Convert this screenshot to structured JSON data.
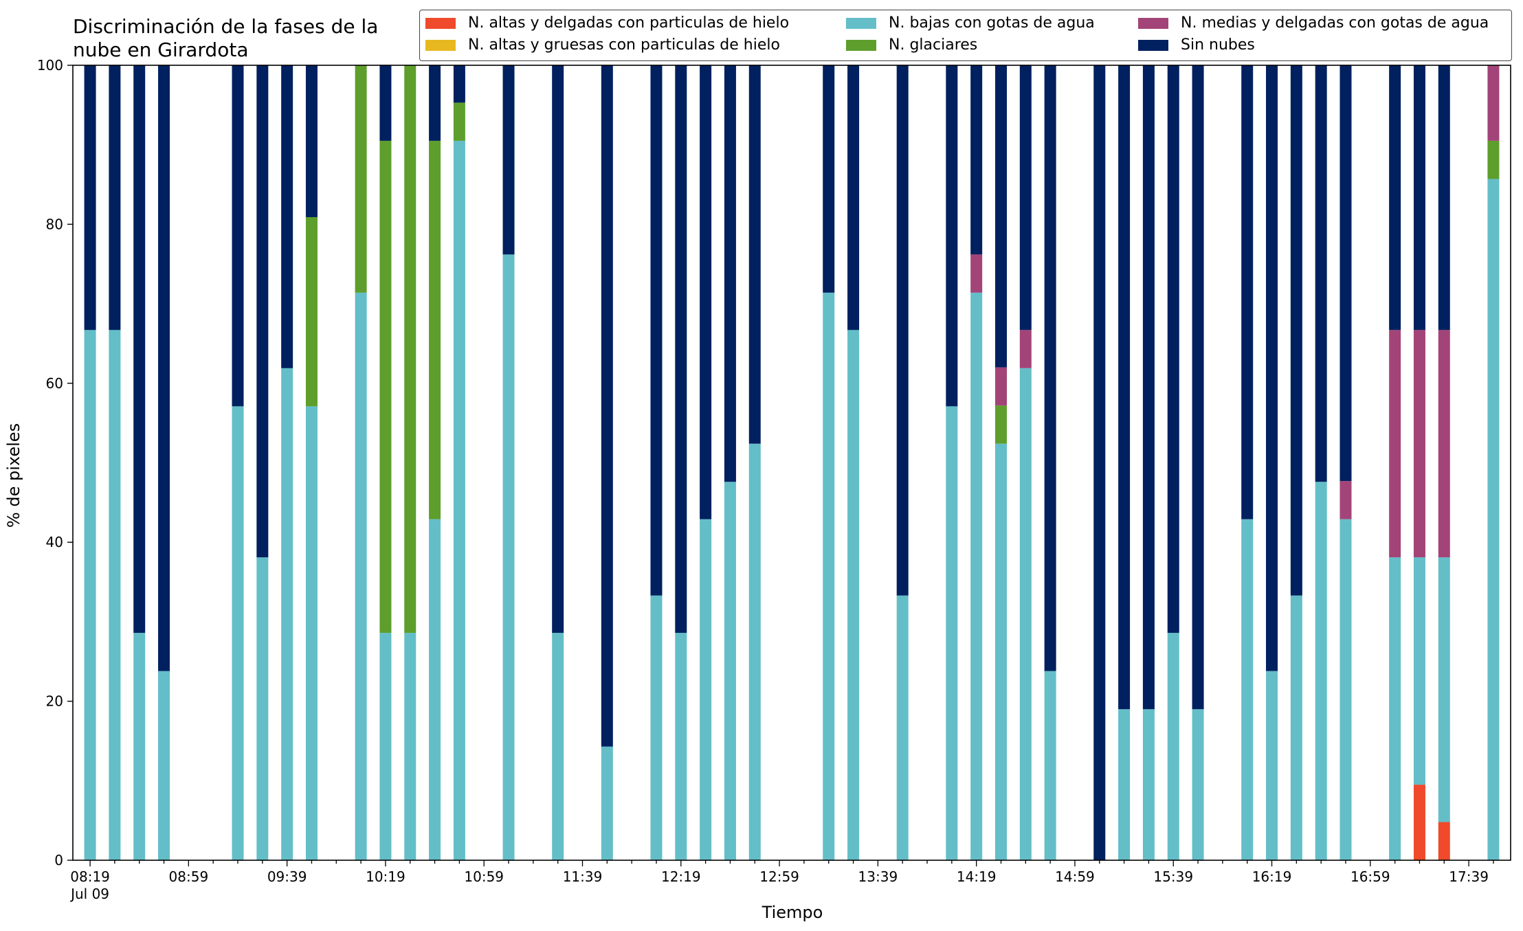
{
  "chart_data": {
    "type": "bar",
    "title": "Discriminación de la fases de la nube en Girardota",
    "title_lines": [
      "Discriminación de la fases de la",
      "nube en Girardota"
    ],
    "xlabel": "Tiempo",
    "ylabel": "% de pixeles",
    "ylim": [
      0,
      100
    ],
    "yticks": [
      0,
      20,
      40,
      60,
      80,
      100
    ],
    "x_start": "08:19",
    "x_end": "17:49",
    "x_step_minutes": 10,
    "xtick_labels": [
      "08:19",
      "08:59",
      "09:39",
      "10:19",
      "10:59",
      "11:39",
      "12:19",
      "12:59",
      "13:39",
      "14:19",
      "14:59",
      "15:39",
      "16:19",
      "16:59",
      "17:39"
    ],
    "x_date_label": "Jul 09",
    "legend_position": "top-right",
    "stacked": true,
    "series": [
      {
        "name": "N. altas y delgadas con particulas de hielo",
        "color": "#ee4a2b"
      },
      {
        "name": "N. altas y gruesas con particulas de hielo",
        "color": "#e8b820"
      },
      {
        "name": "N. bajas con gotas de agua",
        "color": "#63bec8"
      },
      {
        "name": "N. glaciares",
        "color": "#5e9e2c"
      },
      {
        "name": "N. medias y delgadas con gotas de agua",
        "color": "#a34478"
      },
      {
        "name": "Sin nubes",
        "color": "#00205f"
      }
    ],
    "bars": [
      {
        "time": "08:19",
        "values": [
          0,
          0,
          66.7,
          0,
          0,
          33.3
        ]
      },
      {
        "time": "08:29",
        "values": [
          0,
          0,
          66.7,
          0,
          0,
          33.3
        ]
      },
      {
        "time": "08:39",
        "values": [
          0,
          0,
          28.6,
          0,
          0,
          71.4
        ]
      },
      {
        "time": "08:49",
        "values": [
          0,
          0,
          23.8,
          0,
          0,
          76.2
        ]
      },
      {
        "time": "09:19",
        "values": [
          0,
          0,
          57.1,
          0,
          0,
          42.9
        ]
      },
      {
        "time": "09:29",
        "values": [
          0,
          0,
          38.1,
          0,
          0,
          61.9
        ]
      },
      {
        "time": "09:39",
        "values": [
          0,
          0,
          61.9,
          0,
          0,
          38.1
        ]
      },
      {
        "time": "09:49",
        "values": [
          0,
          0,
          57.1,
          23.8,
          0,
          19.1
        ]
      },
      {
        "time": "10:09",
        "values": [
          0,
          0,
          71.4,
          28.6,
          0,
          0
        ]
      },
      {
        "time": "10:19",
        "values": [
          0,
          0,
          28.6,
          61.9,
          0,
          9.5
        ]
      },
      {
        "time": "10:29",
        "values": [
          0,
          0,
          28.6,
          71.4,
          0,
          0
        ]
      },
      {
        "time": "10:39",
        "values": [
          0,
          0,
          42.9,
          47.6,
          0,
          9.5
        ]
      },
      {
        "time": "10:49",
        "values": [
          0,
          0,
          90.5,
          4.8,
          0,
          4.7
        ]
      },
      {
        "time": "11:09",
        "values": [
          0,
          0,
          76.2,
          0,
          0,
          23.8
        ]
      },
      {
        "time": "11:29",
        "values": [
          0,
          0,
          28.6,
          0,
          0,
          71.4
        ]
      },
      {
        "time": "11:49",
        "values": [
          0,
          0,
          14.3,
          0,
          0,
          85.7
        ]
      },
      {
        "time": "12:09",
        "values": [
          0,
          0,
          33.3,
          0,
          0,
          66.7
        ]
      },
      {
        "time": "12:19",
        "values": [
          0,
          0,
          28.6,
          0,
          0,
          71.4
        ]
      },
      {
        "time": "12:29",
        "values": [
          0,
          0,
          42.9,
          0,
          0,
          57.1
        ]
      },
      {
        "time": "12:39",
        "values": [
          0,
          0,
          47.6,
          0,
          0,
          52.4
        ]
      },
      {
        "time": "12:49",
        "values": [
          0,
          0,
          52.4,
          0,
          0,
          47.6
        ]
      },
      {
        "time": "13:19",
        "values": [
          0,
          0,
          71.4,
          0,
          0,
          28.6
        ]
      },
      {
        "time": "13:29",
        "values": [
          0,
          0,
          66.7,
          0,
          0,
          33.3
        ]
      },
      {
        "time": "13:49",
        "values": [
          0,
          0,
          33.3,
          0,
          0,
          66.7
        ]
      },
      {
        "time": "14:09",
        "values": [
          0,
          0,
          57.1,
          0,
          0,
          42.9
        ]
      },
      {
        "time": "14:19",
        "values": [
          0,
          0,
          71.4,
          0,
          4.8,
          23.8
        ]
      },
      {
        "time": "14:29",
        "values": [
          0,
          0,
          52.4,
          4.8,
          4.8,
          38.0
        ]
      },
      {
        "time": "14:39",
        "values": [
          0,
          0,
          61.9,
          0,
          4.8,
          33.3
        ]
      },
      {
        "time": "14:49",
        "values": [
          0,
          0,
          23.8,
          0,
          0,
          76.2
        ]
      },
      {
        "time": "15:09",
        "values": [
          0,
          0,
          0,
          0,
          0,
          100
        ]
      },
      {
        "time": "15:19",
        "values": [
          0,
          0,
          19.0,
          0,
          0,
          81.0
        ]
      },
      {
        "time": "15:29",
        "values": [
          0,
          0,
          19.0,
          0,
          0,
          81.0
        ]
      },
      {
        "time": "15:39",
        "values": [
          0,
          0,
          28.6,
          0,
          0,
          71.4
        ]
      },
      {
        "time": "15:49",
        "values": [
          0,
          0,
          19.0,
          0,
          0,
          81.0
        ]
      },
      {
        "time": "16:09",
        "values": [
          0,
          0,
          42.9,
          0,
          0,
          57.1
        ]
      },
      {
        "time": "16:19",
        "values": [
          0,
          0,
          23.8,
          0,
          0,
          76.2
        ]
      },
      {
        "time": "16:29",
        "values": [
          0,
          0,
          33.3,
          0,
          0,
          66.7
        ]
      },
      {
        "time": "16:39",
        "values": [
          0,
          0,
          47.6,
          0,
          0,
          52.4
        ]
      },
      {
        "time": "16:49",
        "values": [
          0,
          0,
          42.9,
          0,
          4.8,
          52.3
        ]
      },
      {
        "time": "17:09",
        "values": [
          0,
          0,
          38.1,
          0,
          28.6,
          33.3
        ]
      },
      {
        "time": "17:19",
        "values": [
          9.5,
          0,
          28.6,
          0,
          28.6,
          33.3
        ]
      },
      {
        "time": "17:29",
        "values": [
          4.8,
          0,
          33.3,
          0,
          28.6,
          33.3
        ]
      },
      {
        "time": "17:49",
        "values": [
          0,
          0,
          85.7,
          4.8,
          9.5,
          0
        ]
      }
    ]
  }
}
